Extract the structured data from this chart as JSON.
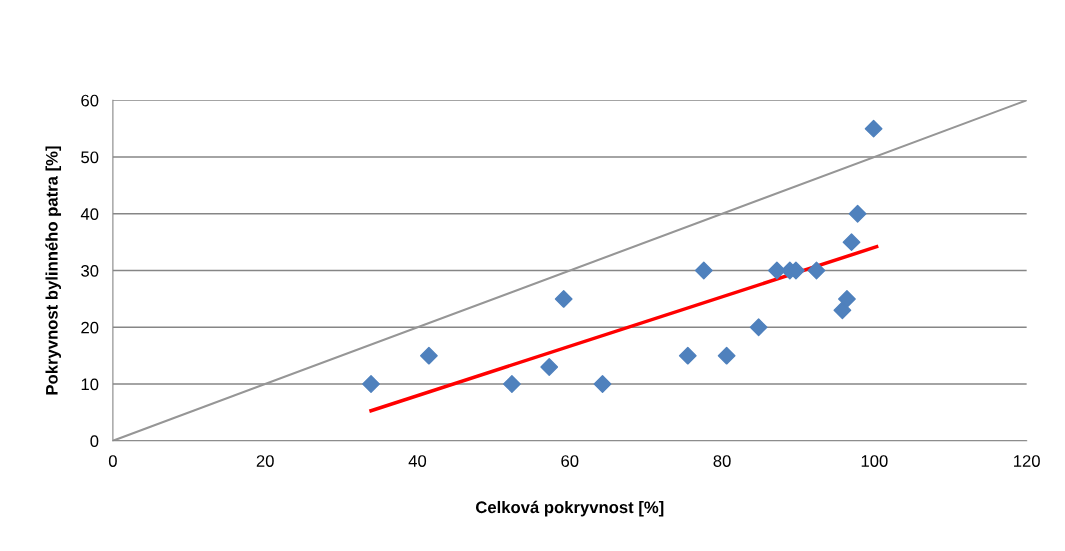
{
  "chart_data": {
    "type": "scatter",
    "xlabel": "Celková pokryvnost [%]",
    "ylabel": "Pokryvnost bylinného patra [%]",
    "xlim": [
      0,
      120
    ],
    "xticks": [
      0,
      20,
      40,
      60,
      80,
      100,
      120
    ],
    "ylim": [
      0,
      60
    ],
    "yticks": [
      0,
      10,
      20,
      30,
      40,
      50,
      60
    ],
    "grid": "y",
    "series": [
      {
        "marker": "diamond",
        "color": "#4f81bd",
        "x": [
          33.9,
          41.5,
          52.4,
          57.3,
          59.2,
          64.3,
          75.5,
          77.6,
          80.6,
          84.8,
          87.2,
          88.9,
          89.7,
          92.4,
          95.8,
          96.4,
          97.0,
          97.8,
          99.9
        ],
        "values": [
          10,
          15,
          10,
          13,
          25,
          10,
          15,
          30,
          15,
          20,
          30,
          30,
          30,
          30,
          23,
          25,
          35,
          40,
          55
        ]
      },
      {
        "type": "line",
        "marker": "none",
        "color": "#ff0000",
        "x": [
          33.9,
          100.3
        ],
        "values": [
          5.3,
          34.2
        ]
      },
      {
        "type": "line",
        "marker": "none",
        "color": "#969696",
        "x": [
          0,
          120
        ],
        "values": [
          0,
          60
        ]
      }
    ]
  }
}
